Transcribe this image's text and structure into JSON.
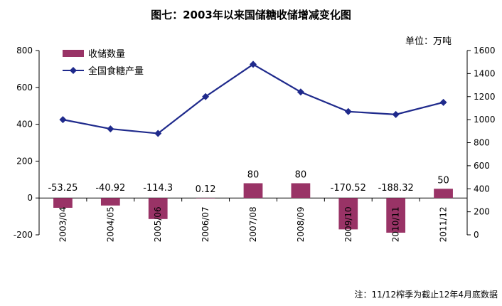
{
  "chart_data": {
    "type": "bar+line",
    "title": "图七：2003年以来国储糖收储增减变化图",
    "unit_label": "单位：万吨",
    "note": "注：11/12榨季为截止12年4月底数据",
    "categories": [
      "2003/04",
      "2004/05",
      "2005/06",
      "2006/07",
      "2007/08",
      "2008/09",
      "2009/10",
      "2010/11",
      "2011/12"
    ],
    "left_axis": {
      "min": -200,
      "max": 800,
      "ticks": [
        -200,
        0,
        200,
        400,
        600,
        800
      ]
    },
    "right_axis": {
      "min": 0,
      "max": 1600,
      "ticks": [
        0,
        200,
        400,
        600,
        800,
        1000,
        1200,
        1400,
        1600
      ]
    },
    "series": [
      {
        "name": "收储数量",
        "type": "bar",
        "axis": "left",
        "color": "#993366",
        "values": [
          -53.25,
          -40.92,
          -114.3,
          0.12,
          80,
          80,
          -170.52,
          -188.32,
          50
        ],
        "labels": [
          "-53.25",
          "-40.92",
          "-114.3",
          "0.12",
          "80",
          "80",
          "-170.52",
          "-188.32",
          "50"
        ]
      },
      {
        "name": "全国食糖产量",
        "type": "line",
        "axis": "right",
        "color": "#1f2a8c",
        "values": [
          1000,
          920,
          880,
          1200,
          1480,
          1240,
          1070,
          1045,
          1150
        ]
      }
    ],
    "legend_position": "top-left",
    "grid": false
  }
}
